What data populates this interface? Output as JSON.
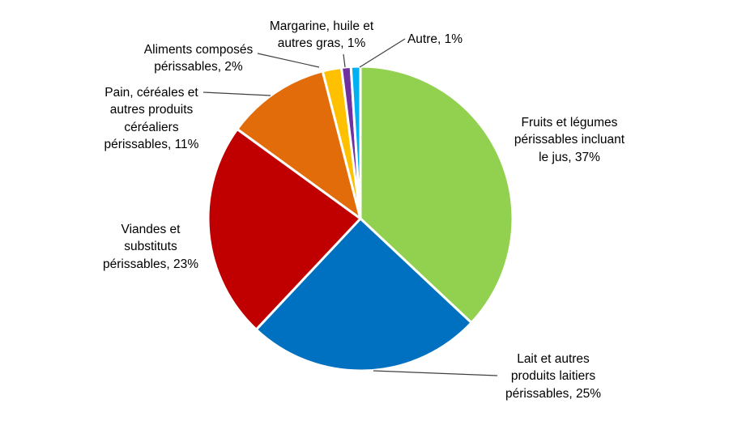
{
  "chart_data": {
    "type": "pie",
    "title": "",
    "unit": "%",
    "start_angle_deg": 0,
    "direction": "clockwise",
    "legend": "none",
    "data_labels": "outside with leader lines, category name + percent",
    "background_color": "#FFFFFF",
    "label_text_color": "#000000",
    "leader_line_color": "#404040",
    "slice_gap_color": "#FFFFFF",
    "slices": [
      {
        "id": "fruits-legumes",
        "category": "Fruits et légumes périssables incluant le jus",
        "value_pct": 37,
        "color": "#92D050",
        "label_display": "Fruits et légumes\npérissables incluant\nle jus, 37%"
      },
      {
        "id": "lait-produits-laitiers",
        "category": "Lait et autres produits laitiers périssables",
        "value_pct": 25,
        "color": "#0070C0",
        "label_display": "Lait et autres\nproduits laitiers\npérissables, 25%"
      },
      {
        "id": "viandes-substituts",
        "category": "Viandes et substituts périssables",
        "value_pct": 23,
        "color": "#C00000",
        "label_display": "Viandes et\nsubstituts\npérissables, 23%"
      },
      {
        "id": "pain-cereales",
        "category": "Pain, céréales et autres produits céréaliers périssables",
        "value_pct": 11,
        "color": "#E36C0A",
        "label_display": "Pain, céréales et\nautres produits\ncéréaliers\npérissables, 11%"
      },
      {
        "id": "aliments-composes",
        "category": "Aliments composés périssables",
        "value_pct": 2,
        "color": "#FFC000",
        "label_display": "Aliments composés\npérissables, 2%"
      },
      {
        "id": "margarine-huile",
        "category": "Margarine, huile et autres gras",
        "value_pct": 1,
        "color": "#7030A0",
        "label_display": "Margarine, huile et\nautres gras, 1%"
      },
      {
        "id": "autre",
        "category": "Autre",
        "value_pct": 1,
        "color": "#00B0F0",
        "label_display": "Autre, 1%"
      }
    ]
  }
}
